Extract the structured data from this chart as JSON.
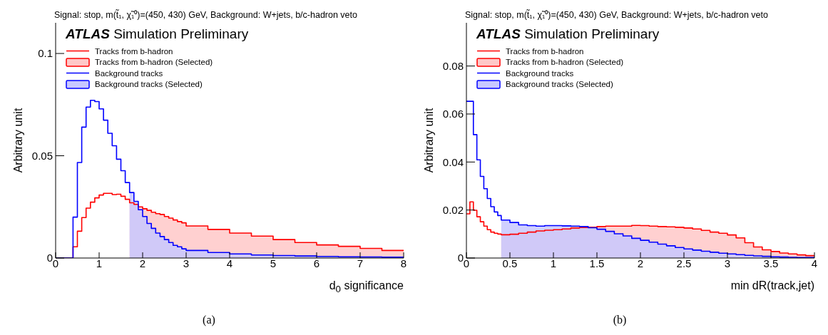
{
  "chart_data": [
    {
      "type": "step",
      "title": "Signal: stop, m(t̃₁, χ̃₁⁰)=(450, 430) GeV,  Background: W+jets, b/c-hadron veto",
      "xlabel": "d$_{0}$ significance",
      "ylabel": "Arbitrary unit",
      "annotations": [
        "ATLAS",
        "Simulation Preliminary",
        "(a)"
      ],
      "legend": "top left",
      "xlim": [
        0,
        8
      ],
      "xticks": [
        0,
        1,
        2,
        3,
        4,
        5,
        6,
        7,
        8
      ],
      "ylim": [
        0,
        0.115
      ],
      "yticks": [
        0,
        0.05,
        0.1
      ],
      "x": [
        0,
        0.4,
        0.5,
        0.6,
        0.7,
        0.8,
        0.9,
        1.0,
        1.1,
        1.2,
        1.3,
        1.4,
        1.5,
        1.6,
        1.7,
        1.8,
        1.9,
        2.0,
        2.1,
        2.2,
        2.3,
        2.4,
        2.5,
        2.6,
        2.7,
        2.8,
        2.9,
        3.0,
        3.5,
        4.0,
        4.5,
        5.0,
        5.5,
        6.0,
        6.5,
        7.0,
        7.5,
        8.0
      ],
      "series": [
        {
          "name": "Tracks from b-hadron",
          "type": "step",
          "color": "#ff0000",
          "values": [
            0,
            0.0055,
            0.0131,
            0.0198,
            0.0244,
            0.0273,
            0.0294,
            0.0308,
            0.0316,
            0.0316,
            0.031,
            0.0312,
            0.0302,
            0.0287,
            0.027,
            0.0262,
            0.025,
            0.0241,
            0.0233,
            0.0224,
            0.0217,
            0.0213,
            0.0203,
            0.0195,
            0.0186,
            0.0178,
            0.0172,
            0.0157,
            0.014,
            0.0122,
            0.0107,
            0.009,
            0.0076,
            0.0064,
            0.0057,
            0.0047,
            0.0037,
            0.0037
          ]
        },
        {
          "name": "Tracks from b-hadron (Selected)",
          "type": "area",
          "color": "#ffc8c8",
          "x": [
            1.7,
            1.8,
            1.9,
            2.0,
            2.1,
            2.2,
            2.3,
            2.4,
            2.5,
            2.6,
            2.7,
            2.8,
            2.9,
            3.0,
            3.5,
            4.0,
            4.5,
            5.0,
            5.5,
            6.0,
            6.5,
            7.0,
            7.5,
            8.0
          ],
          "values": [
            0.027,
            0.0262,
            0.025,
            0.0241,
            0.0233,
            0.0224,
            0.0217,
            0.0213,
            0.0203,
            0.0195,
            0.0186,
            0.0178,
            0.0172,
            0.0157,
            0.014,
            0.0122,
            0.0107,
            0.009,
            0.0076,
            0.0064,
            0.0057,
            0.0047,
            0.0037,
            0.0037
          ]
        },
        {
          "name": "Background tracks",
          "type": "step",
          "color": "#0000ff",
          "values": [
            0,
            0.02,
            0.0467,
            0.064,
            0.0738,
            0.0771,
            0.0765,
            0.0729,
            0.0674,
            0.061,
            0.0549,
            0.0483,
            0.0427,
            0.0369,
            0.032,
            0.0277,
            0.0236,
            0.0203,
            0.0169,
            0.0145,
            0.0122,
            0.0105,
            0.009,
            0.0076,
            0.0062,
            0.0055,
            0.0045,
            0.0037,
            0.0027,
            0.002,
            0.0015,
            0.0012,
            0.001,
            0.0008,
            0.0006,
            0.0005,
            0.0004,
            0.0004
          ]
        },
        {
          "name": "Background tracks (Selected)",
          "type": "area",
          "color": "#c8c8ff",
          "x": [
            1.7,
            1.8,
            1.9,
            2.0,
            2.1,
            2.2,
            2.3,
            2.4,
            2.5,
            2.6,
            2.7,
            2.8,
            2.9,
            3.0,
            3.5,
            4.0,
            4.5,
            5.0,
            5.5,
            6.0,
            6.5,
            7.0,
            7.5,
            8.0
          ],
          "values": [
            0.032,
            0.0277,
            0.0236,
            0.0203,
            0.0169,
            0.0145,
            0.0122,
            0.0105,
            0.009,
            0.0076,
            0.0062,
            0.0055,
            0.0045,
            0.0037,
            0.0027,
            0.002,
            0.0015,
            0.0012,
            0.001,
            0.0008,
            0.0006,
            0.0005,
            0.0004,
            0.0004
          ]
        }
      ]
    },
    {
      "type": "step",
      "title": "Signal: stop, m(t̃₁, χ̃₁⁰)=(450, 430) GeV,  Background: W+jets, b/c-hadron veto",
      "xlabel": "min dR(track,jet)",
      "ylabel": "Arbitrary unit",
      "annotations": [
        "ATLAS",
        "Simulation Preliminary",
        "(b)"
      ],
      "legend": "top left",
      "xlim": [
        0,
        4
      ],
      "xticks": [
        0,
        0.5,
        1,
        1.5,
        2,
        2.5,
        3,
        3.5,
        4
      ],
      "ylim": [
        0,
        0.098
      ],
      "yticks": [
        0,
        0.02,
        0.04,
        0.06,
        0.08
      ],
      "x": [
        0,
        0.04,
        0.08,
        0.12,
        0.16,
        0.2,
        0.24,
        0.28,
        0.32,
        0.36,
        0.4,
        0.5,
        0.6,
        0.7,
        0.8,
        0.9,
        1.0,
        1.1,
        1.2,
        1.3,
        1.4,
        1.5,
        1.6,
        1.7,
        1.8,
        1.9,
        2.0,
        2.1,
        2.2,
        2.3,
        2.4,
        2.5,
        2.6,
        2.7,
        2.8,
        2.9,
        3.0,
        3.1,
        3.2,
        3.3,
        3.4,
        3.5,
        3.6,
        3.7,
        3.8,
        3.9,
        4.0
      ],
      "series": [
        {
          "name": "Tracks from b-hadron",
          "type": "step",
          "color": "#ff0000",
          "values": [
            0.0184,
            0.0234,
            0.0199,
            0.0172,
            0.0151,
            0.0133,
            0.0118,
            0.0108,
            0.0103,
            0.01,
            0.0097,
            0.0099,
            0.0103,
            0.0108,
            0.0113,
            0.0116,
            0.0118,
            0.0121,
            0.0125,
            0.0127,
            0.0128,
            0.0131,
            0.0133,
            0.0133,
            0.0133,
            0.0136,
            0.0135,
            0.0133,
            0.0131,
            0.013,
            0.0128,
            0.0125,
            0.0121,
            0.0115,
            0.0108,
            0.0103,
            0.0096,
            0.0084,
            0.0064,
            0.0046,
            0.0034,
            0.0027,
            0.0021,
            0.0017,
            0.0013,
            0.001,
            0.001
          ]
        },
        {
          "name": "Tracks from b-hadron (Selected)",
          "type": "area",
          "color": "#ffc8c8",
          "x": [
            0.4,
            0.5,
            0.6,
            0.7,
            0.8,
            0.9,
            1.0,
            1.1,
            1.2,
            1.3,
            1.4,
            1.5,
            1.6,
            1.7,
            1.8,
            1.9,
            2.0,
            2.1,
            2.2,
            2.3,
            2.4,
            2.5,
            2.6,
            2.7,
            2.8,
            2.9,
            3.0,
            3.1,
            3.2,
            3.3,
            3.4,
            3.5,
            3.6,
            3.7,
            3.8,
            3.9,
            4.0
          ],
          "values": [
            0.0097,
            0.0099,
            0.0103,
            0.0108,
            0.0113,
            0.0116,
            0.0118,
            0.0121,
            0.0125,
            0.0127,
            0.0128,
            0.0131,
            0.0133,
            0.0133,
            0.0133,
            0.0136,
            0.0135,
            0.0133,
            0.0131,
            0.013,
            0.0128,
            0.0125,
            0.0121,
            0.0115,
            0.0108,
            0.0103,
            0.0096,
            0.0084,
            0.0064,
            0.0046,
            0.0034,
            0.0027,
            0.0021,
            0.0017,
            0.0013,
            0.001,
            0.001
          ]
        },
        {
          "name": "Background tracks",
          "type": "step",
          "color": "#0000ff",
          "values": [
            0.0653,
            0.0653,
            0.0514,
            0.0409,
            0.034,
            0.0289,
            0.0248,
            0.0214,
            0.0192,
            0.0177,
            0.0158,
            0.0148,
            0.0138,
            0.0135,
            0.0133,
            0.0135,
            0.0135,
            0.0134,
            0.0133,
            0.0131,
            0.0126,
            0.012,
            0.0111,
            0.0101,
            0.0092,
            0.0082,
            0.0074,
            0.0066,
            0.0058,
            0.0051,
            0.0044,
            0.0038,
            0.0033,
            0.0028,
            0.0024,
            0.002,
            0.0017,
            0.0014,
            0.0011,
            0.0009,
            0.0007,
            0.0005,
            0.0004,
            0.0003,
            0.0002,
            0.0002,
            0.0002
          ]
        },
        {
          "name": "Background tracks (Selected)",
          "type": "area",
          "color": "#c8c8ff",
          "x": [
            0.4,
            0.5,
            0.6,
            0.7,
            0.8,
            0.9,
            1.0,
            1.1,
            1.2,
            1.3,
            1.4,
            1.5,
            1.6,
            1.7,
            1.8,
            1.9,
            2.0,
            2.1,
            2.2,
            2.3,
            2.4,
            2.5,
            2.6,
            2.7,
            2.8,
            2.9,
            3.0,
            3.1,
            3.2,
            3.3,
            3.4,
            3.5,
            3.6,
            3.7,
            3.8,
            3.9,
            4.0
          ],
          "values": [
            0.0158,
            0.0148,
            0.0138,
            0.0135,
            0.0133,
            0.0135,
            0.0135,
            0.0134,
            0.0133,
            0.0131,
            0.0126,
            0.012,
            0.0111,
            0.0101,
            0.0092,
            0.0082,
            0.0074,
            0.0066,
            0.0058,
            0.0051,
            0.0044,
            0.0038,
            0.0033,
            0.0028,
            0.0024,
            0.002,
            0.0017,
            0.0014,
            0.0011,
            0.0009,
            0.0007,
            0.0005,
            0.0004,
            0.0003,
            0.0002,
            0.0002,
            0.0002
          ]
        }
      ]
    }
  ]
}
